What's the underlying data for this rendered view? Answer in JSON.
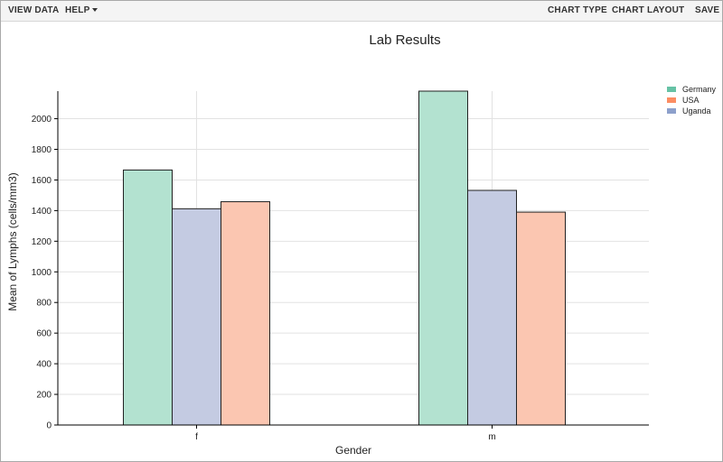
{
  "toolbar": {
    "view_data": "VIEW DATA",
    "help": "HELP",
    "chart_type": "CHART TYPE",
    "chart_layout": "CHART LAYOUT",
    "save": "SAVE"
  },
  "chart_data": {
    "type": "bar",
    "title": "Lab Results",
    "xlabel": "Gender",
    "ylabel": "Mean of Lymphs (cells/mm3)",
    "categories": [
      "f",
      "m"
    ],
    "series": [
      {
        "name": "Germany",
        "color": "#b3e2d0",
        "values": [
          1665,
          2180
        ]
      },
      {
        "name": "Uganda",
        "color": "#c4cbe2",
        "values": [
          1412,
          1532
        ]
      },
      {
        "name": "USA",
        "color": "#fbc6b1",
        "values": [
          1458,
          1390
        ]
      }
    ],
    "legend": [
      {
        "name": "Germany",
        "color": "#66c2a5"
      },
      {
        "name": "USA",
        "color": "#fc8d62"
      },
      {
        "name": "Uganda",
        "color": "#8da0cb"
      }
    ],
    "yticks": [
      0,
      200,
      400,
      600,
      800,
      1000,
      1200,
      1400,
      1600,
      1800,
      2000
    ],
    "ylim": [
      0,
      2180
    ],
    "grid": true,
    "legend_position": "top-right"
  }
}
